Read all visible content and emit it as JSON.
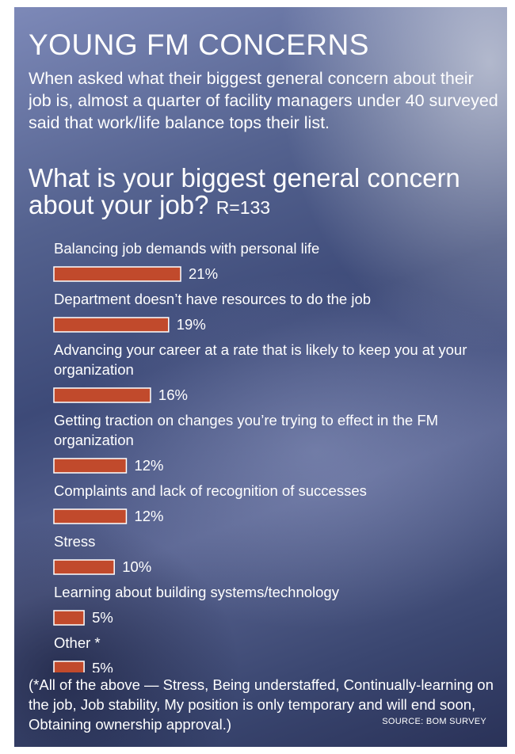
{
  "header": {
    "title": "YOUNG FM CONCERNS",
    "intro": "When asked what their biggest general concern about their job is, almost a quarter of facility managers under 40 surveyed said that work/life balance tops their list."
  },
  "question": {
    "text": "What is your biggest general concern about your job?",
    "respondents": "R=133"
  },
  "chart_data": {
    "type": "bar",
    "orientation": "horizontal",
    "categories": [
      "Balancing job demands with personal life",
      "Department doesn’t have resources to do the job",
      "Advancing your career at a rate that is likely to keep you at your organization",
      "Getting traction on changes you’re trying to effect in the FM organization",
      "Complaints and lack of recognition of successes",
      "Stress",
      "Learning about building systems/technology",
      "Other *"
    ],
    "values": [
      21,
      19,
      16,
      12,
      12,
      10,
      5,
      5
    ],
    "value_labels": [
      "21%",
      "19%",
      "16%",
      "12%",
      "12%",
      "10%",
      "5%",
      "5%"
    ],
    "unit": "%",
    "bar_color": "#c14a2c",
    "bar_border": "#ffffff"
  },
  "footer": {
    "footnote": "(*All of the above — Stress, Being understaffed, Continually-learning on the job, Job stability, My position is only temporary and will end soon, Obtaining ownership approval.)",
    "source": "SOURCE: BOM SURVEY"
  }
}
